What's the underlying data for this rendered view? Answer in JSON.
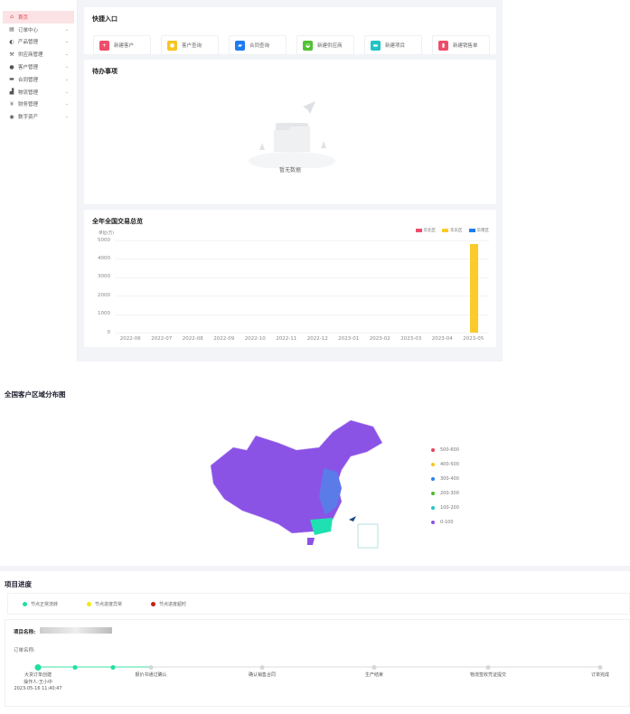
{
  "sidebar": {
    "items": [
      {
        "label": "首页",
        "icon": "home-icon",
        "active": true
      },
      {
        "label": "订单中心",
        "icon": "order-icon"
      },
      {
        "label": "产品管理",
        "icon": "product-icon"
      },
      {
        "label": "供应商管理",
        "icon": "supplier-icon"
      },
      {
        "label": "客户管理",
        "icon": "user-icon"
      },
      {
        "label": "合同管理",
        "icon": "briefcase-icon"
      },
      {
        "label": "物流管理",
        "icon": "truck-icon"
      },
      {
        "label": "财务管理",
        "icon": "yen-icon"
      },
      {
        "label": "数字资产",
        "icon": "asset-icon"
      }
    ]
  },
  "quick": {
    "title": "快捷入口",
    "items": [
      {
        "label": "新建客户",
        "color": "#ee4d6a",
        "icon": "add-user-icon"
      },
      {
        "label": "客户查询",
        "color": "#f6c623",
        "icon": "users-icon"
      },
      {
        "label": "合同查询",
        "color": "#1e7cf2",
        "icon": "contract-icon"
      },
      {
        "label": "新建供应商",
        "color": "#52c234",
        "icon": "car-icon"
      },
      {
        "label": "新建项目",
        "color": "#22c3c3",
        "icon": "briefcase-icon"
      },
      {
        "label": "新建销售单",
        "color": "#ee4d6a",
        "icon": "document-icon"
      }
    ]
  },
  "todo": {
    "title": "待办事项",
    "empty": "暂无数据"
  },
  "chart_data": {
    "type": "bar",
    "title": "全年全国交易总览",
    "ylabel": "单位(万)",
    "ylim": [
      0,
      5000
    ],
    "yticks": [
      0,
      1000,
      2000,
      3000,
      4000,
      5000
    ],
    "grid": true,
    "legend": "top-right",
    "categories": [
      "2022-06",
      "2022-07",
      "2022-08",
      "2022-09",
      "2022-10",
      "2022-11",
      "2022-12",
      "2023-01",
      "2023-02",
      "2023-03",
      "2023-04",
      "2023-05"
    ],
    "series": [
      {
        "name": "华北区",
        "color": "#ee4d6a",
        "values": [
          0,
          0,
          0,
          0,
          0,
          0,
          0,
          0,
          0,
          0,
          0,
          0
        ]
      },
      {
        "name": "华东区",
        "color": "#fbcb2b",
        "values": [
          0,
          0,
          0,
          0,
          0,
          0,
          0,
          0,
          0,
          0,
          0,
          4800
        ]
      },
      {
        "name": "华南区",
        "color": "#1e7cf2",
        "values": [
          0,
          0,
          0,
          0,
          0,
          0,
          0,
          0,
          0,
          0,
          0,
          0
        ]
      }
    ]
  },
  "map": {
    "title": "全国客户区域分布图",
    "legend": [
      {
        "label": "500-600",
        "color": "#e8425b"
      },
      {
        "label": "400-500",
        "color": "#f7c51e"
      },
      {
        "label": "300-400",
        "color": "#2a82f0"
      },
      {
        "label": "200-300",
        "color": "#4fb82f"
      },
      {
        "label": "100-200",
        "color": "#1fc8c0"
      },
      {
        "label": "0-100",
        "color": "#8b52e6"
      }
    ]
  },
  "progress": {
    "title": "项目进度",
    "legend": [
      {
        "label": "节点正常流转",
        "color": "#1fe0a0"
      },
      {
        "label": "节点进度异常",
        "color": "#f5e61a"
      },
      {
        "label": "节点进度超时",
        "color": "#c8200e"
      }
    ],
    "project_label": "项目名称:",
    "order_label": "订单名称:",
    "steps": [
      {
        "label": "大货订单创建",
        "operator": "操作人:王小中",
        "time": "2023-05-16 11:40:47",
        "done": true
      },
      {
        "label": "",
        "done": true
      },
      {
        "label": "",
        "done": true
      },
      {
        "label": "报价书通过确认",
        "done": false
      },
      {
        "label": "确认销售合同",
        "done": false
      },
      {
        "label": "生产结束",
        "done": false
      },
      {
        "label": "物流签收凭证提交",
        "done": false
      },
      {
        "label": "订单完成",
        "done": false
      }
    ]
  }
}
